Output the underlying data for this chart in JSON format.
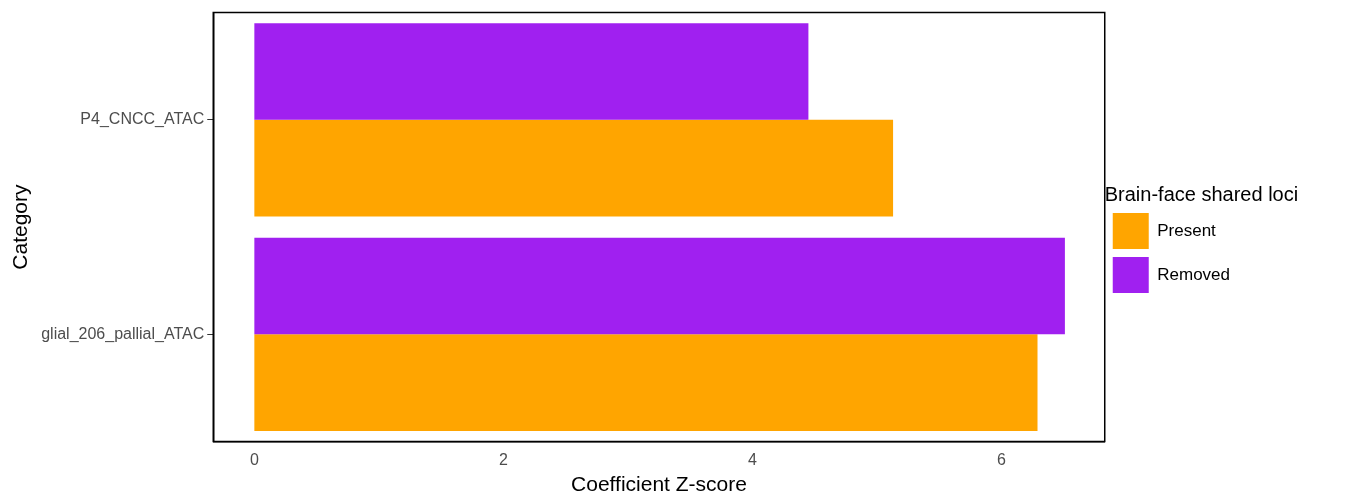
{
  "chart_data": {
    "type": "bar",
    "orientation": "horizontal",
    "xlabel": "Coefficient Z-score",
    "ylabel": "Category",
    "legend_title": "Brain-face shared loci",
    "legend": "right",
    "categories": [
      "P4_CNCC_ATAC",
      "glial_206_pallial_ATAC"
    ],
    "series": [
      {
        "name": "Present",
        "color": "#ffa500",
        "values": [
          5.13,
          6.29
        ]
      },
      {
        "name": "Removed",
        "color": "#a020f0",
        "values": [
          4.45,
          6.51
        ]
      }
    ],
    "xlim": [
      -0.33,
      6.83
    ],
    "xticks": [
      0,
      2,
      4,
      6
    ],
    "grid": false
  }
}
